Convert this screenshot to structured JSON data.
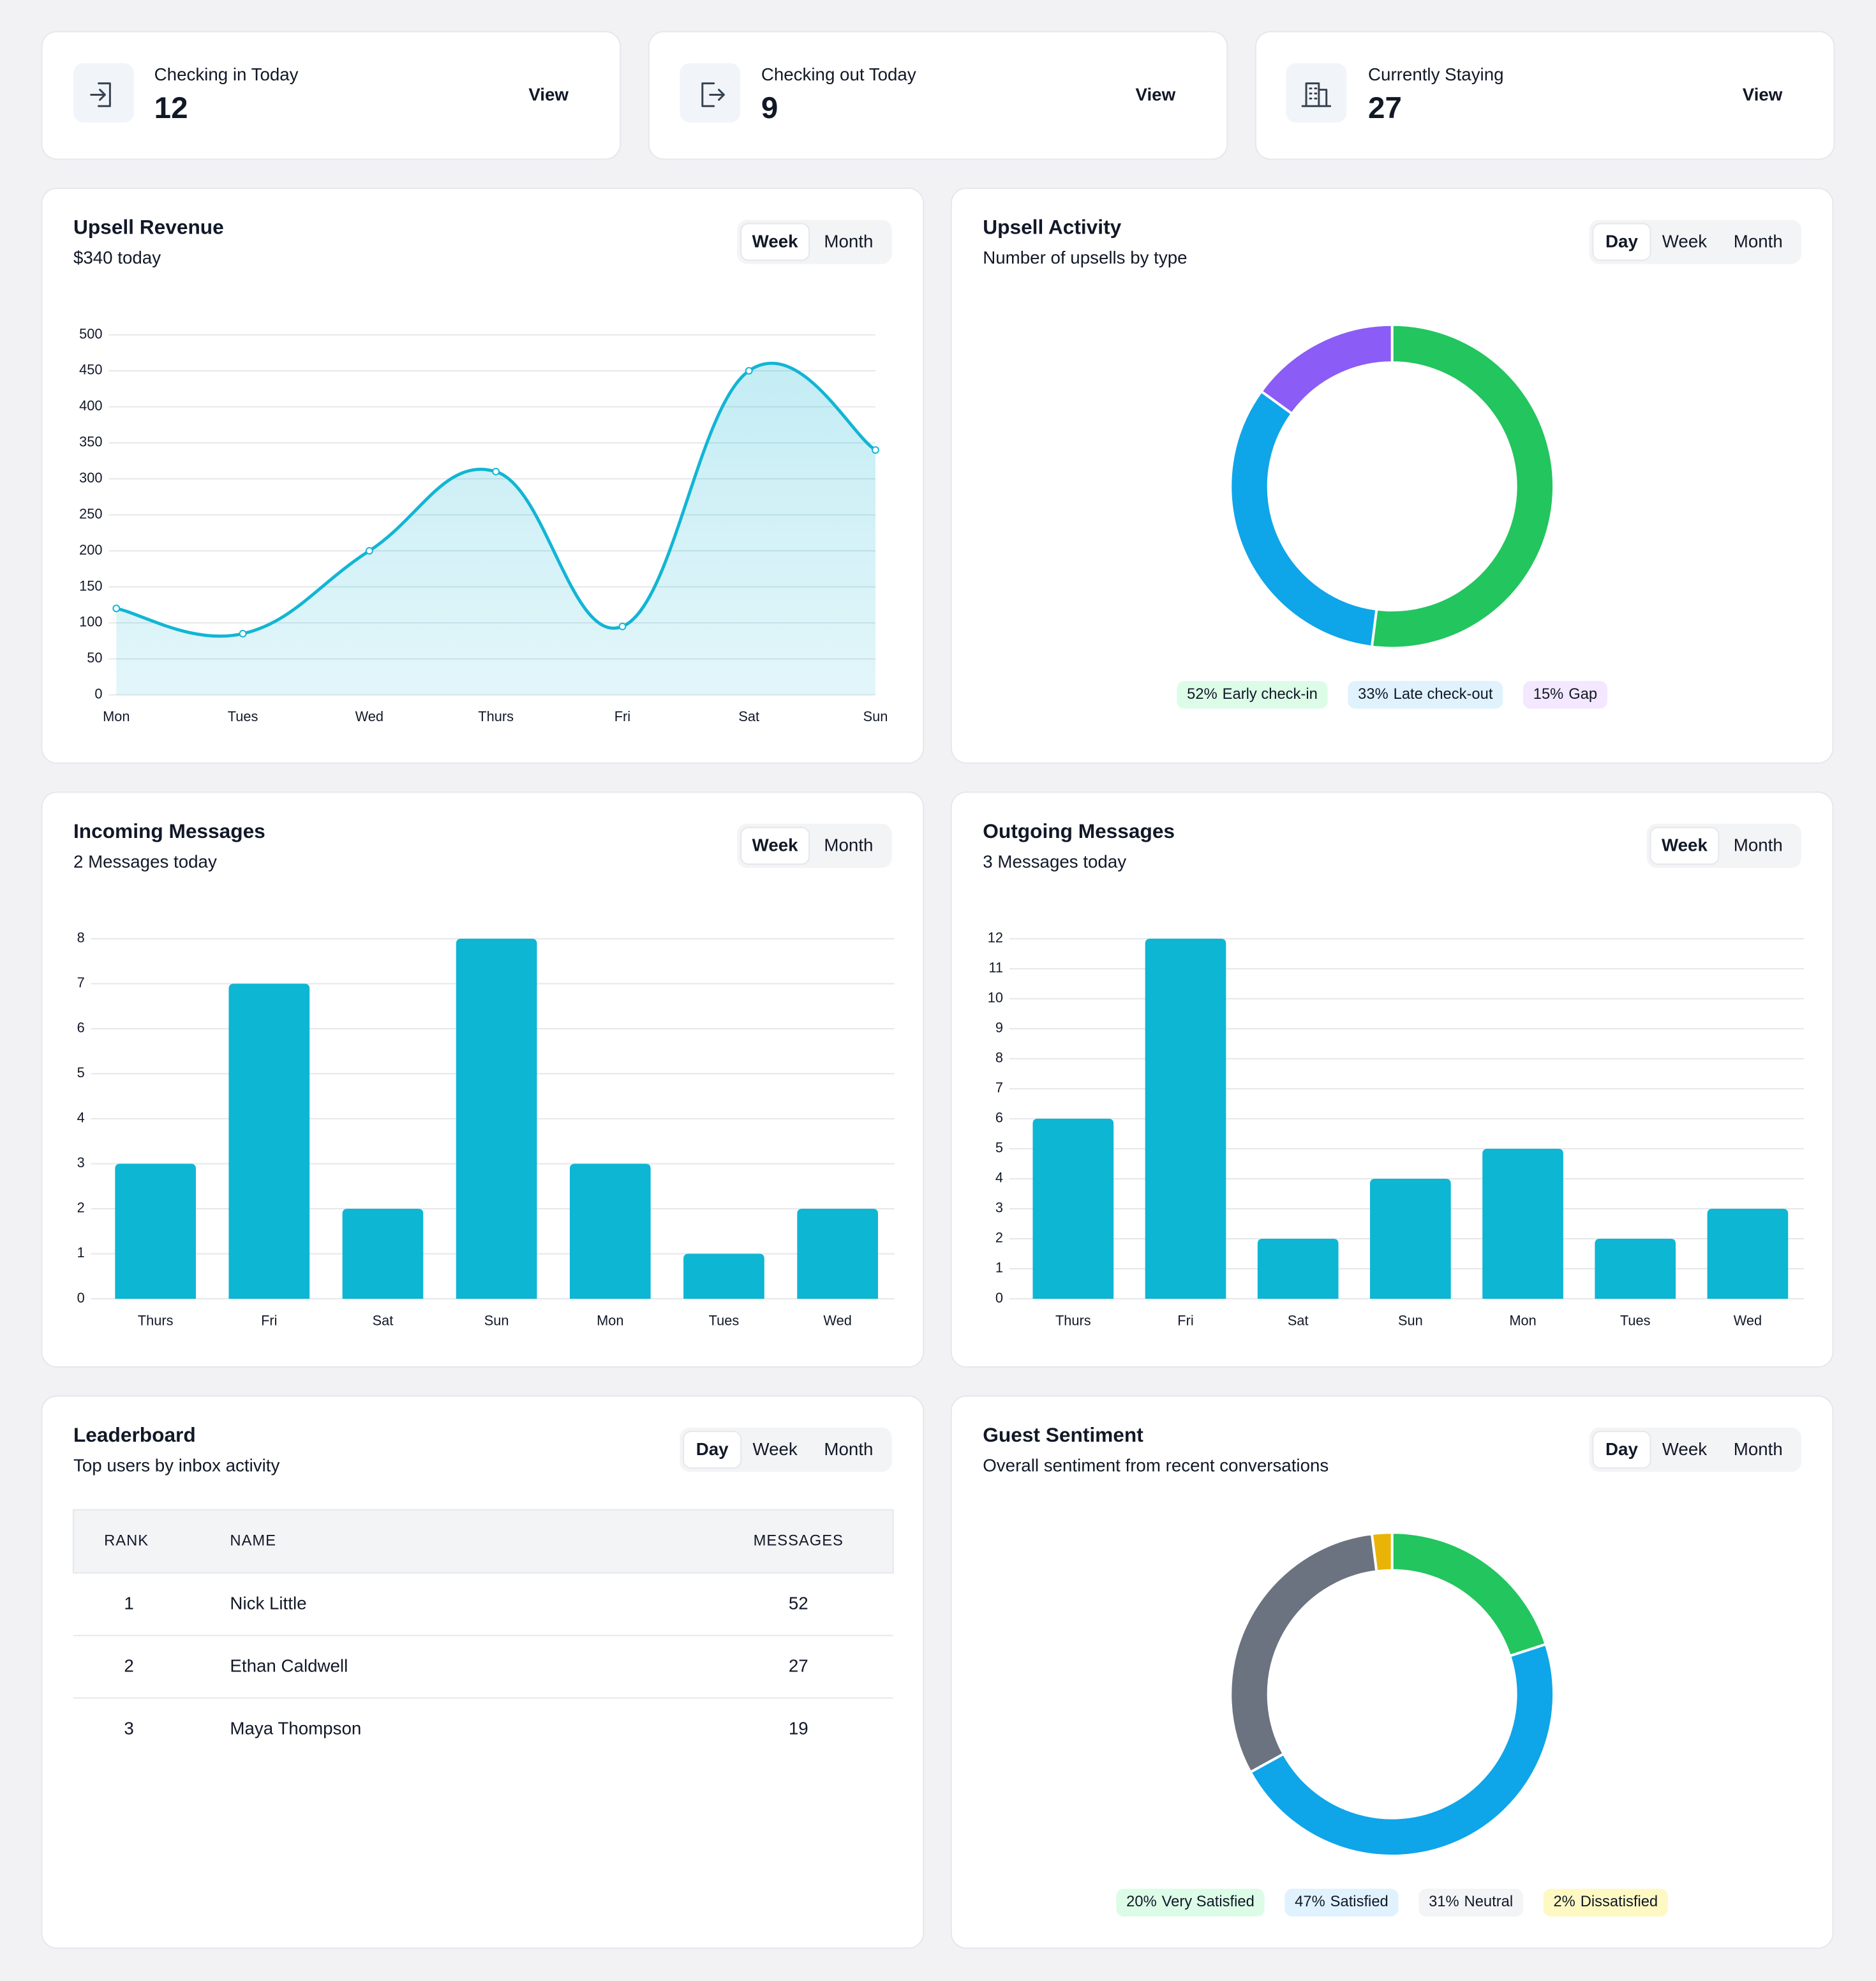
{
  "stats": [
    {
      "label": "Checking in Today",
      "value": "12",
      "action": "View"
    },
    {
      "label": "Checking out Today",
      "value": "9",
      "action": "View"
    },
    {
      "label": "Currently Staying",
      "value": "27",
      "action": "View"
    }
  ],
  "chart_data": [
    {
      "type": "line",
      "title": "Upsell Revenue",
      "subtitle": "$340 today",
      "periods": [
        "Week",
        "Month"
      ],
      "selected": 0,
      "categories": [
        "Mon",
        "Tues",
        "Wed",
        "Thurs",
        "Fri",
        "Sat",
        "Sun"
      ],
      "values": [
        120,
        85,
        200,
        310,
        95,
        450,
        340
      ],
      "color": "#12b5d4",
      "ylim": [
        0,
        500
      ],
      "yticks": [
        0,
        50,
        100,
        150,
        200,
        250,
        300,
        350,
        400,
        450,
        500
      ],
      "grid": true
    },
    {
      "type": "pie",
      "title": "Upsell Activity",
      "subtitle": "Number of upsells by type",
      "periods": [
        "Day",
        "Week",
        "Month"
      ],
      "selected": 0,
      "categories": [
        "Early check-in",
        "Late check-out",
        "Gap"
      ],
      "values": [
        52,
        33,
        15
      ],
      "value_labels": [
        "52%",
        "33%",
        "15%"
      ],
      "colors": [
        "#22c55e",
        "#0ea5e9",
        "#8b5cf6"
      ]
    },
    {
      "type": "bar",
      "title": "Incoming Messages",
      "subtitle": "2 Messages today",
      "periods": [
        "Week",
        "Month"
      ],
      "selected": 0,
      "categories": [
        "Thurs",
        "Fri",
        "Sat",
        "Sun",
        "Mon",
        "Tues",
        "Wed"
      ],
      "values": [
        3,
        7,
        2,
        8,
        3,
        1,
        2
      ],
      "color": "#0db6d3",
      "ylim": [
        0,
        8
      ],
      "yticks": [
        0,
        1,
        2,
        3,
        4,
        5,
        6,
        7,
        8
      ],
      "grid": true
    },
    {
      "type": "bar",
      "title": "Outgoing Messages",
      "subtitle": "3 Messages today",
      "periods": [
        "Week",
        "Month"
      ],
      "selected": 0,
      "categories": [
        "Thurs",
        "Fri",
        "Sat",
        "Sun",
        "Mon",
        "Tues",
        "Wed"
      ],
      "values": [
        6,
        12,
        2,
        4,
        5,
        2,
        3
      ],
      "color": "#0db6d3",
      "ylim": [
        0,
        12
      ],
      "yticks": [
        0,
        1,
        2,
        3,
        4,
        5,
        6,
        7,
        8,
        9,
        10,
        11,
        12
      ],
      "grid": true
    },
    {
      "type": "pie",
      "title": "Guest Sentiment",
      "subtitle": "Overall sentiment from recent conversations",
      "periods": [
        "Day",
        "Week",
        "Month"
      ],
      "selected": 0,
      "categories": [
        "Very Satisfied",
        "Satisfied",
        "Neutral",
        "Dissatisfied"
      ],
      "values": [
        20,
        47,
        31,
        2
      ],
      "value_labels": [
        "20%",
        "47%",
        "31%",
        "2%"
      ],
      "colors": [
        "#22c55e",
        "#0ea5e9",
        "#6b7280",
        "#eab308"
      ]
    }
  ],
  "leaderboard": {
    "title": "Leaderboard",
    "subtitle": "Top users by inbox activity",
    "periods": [
      "Day",
      "Week",
      "Month"
    ],
    "selected": 0,
    "columns": [
      "RANK",
      "NAME",
      "MESSAGES"
    ],
    "rows": [
      [
        1,
        "Nick Little",
        52
      ],
      [
        2,
        "Ethan Caldwell",
        27
      ],
      [
        3,
        "Maya Thompson",
        19
      ]
    ]
  }
}
